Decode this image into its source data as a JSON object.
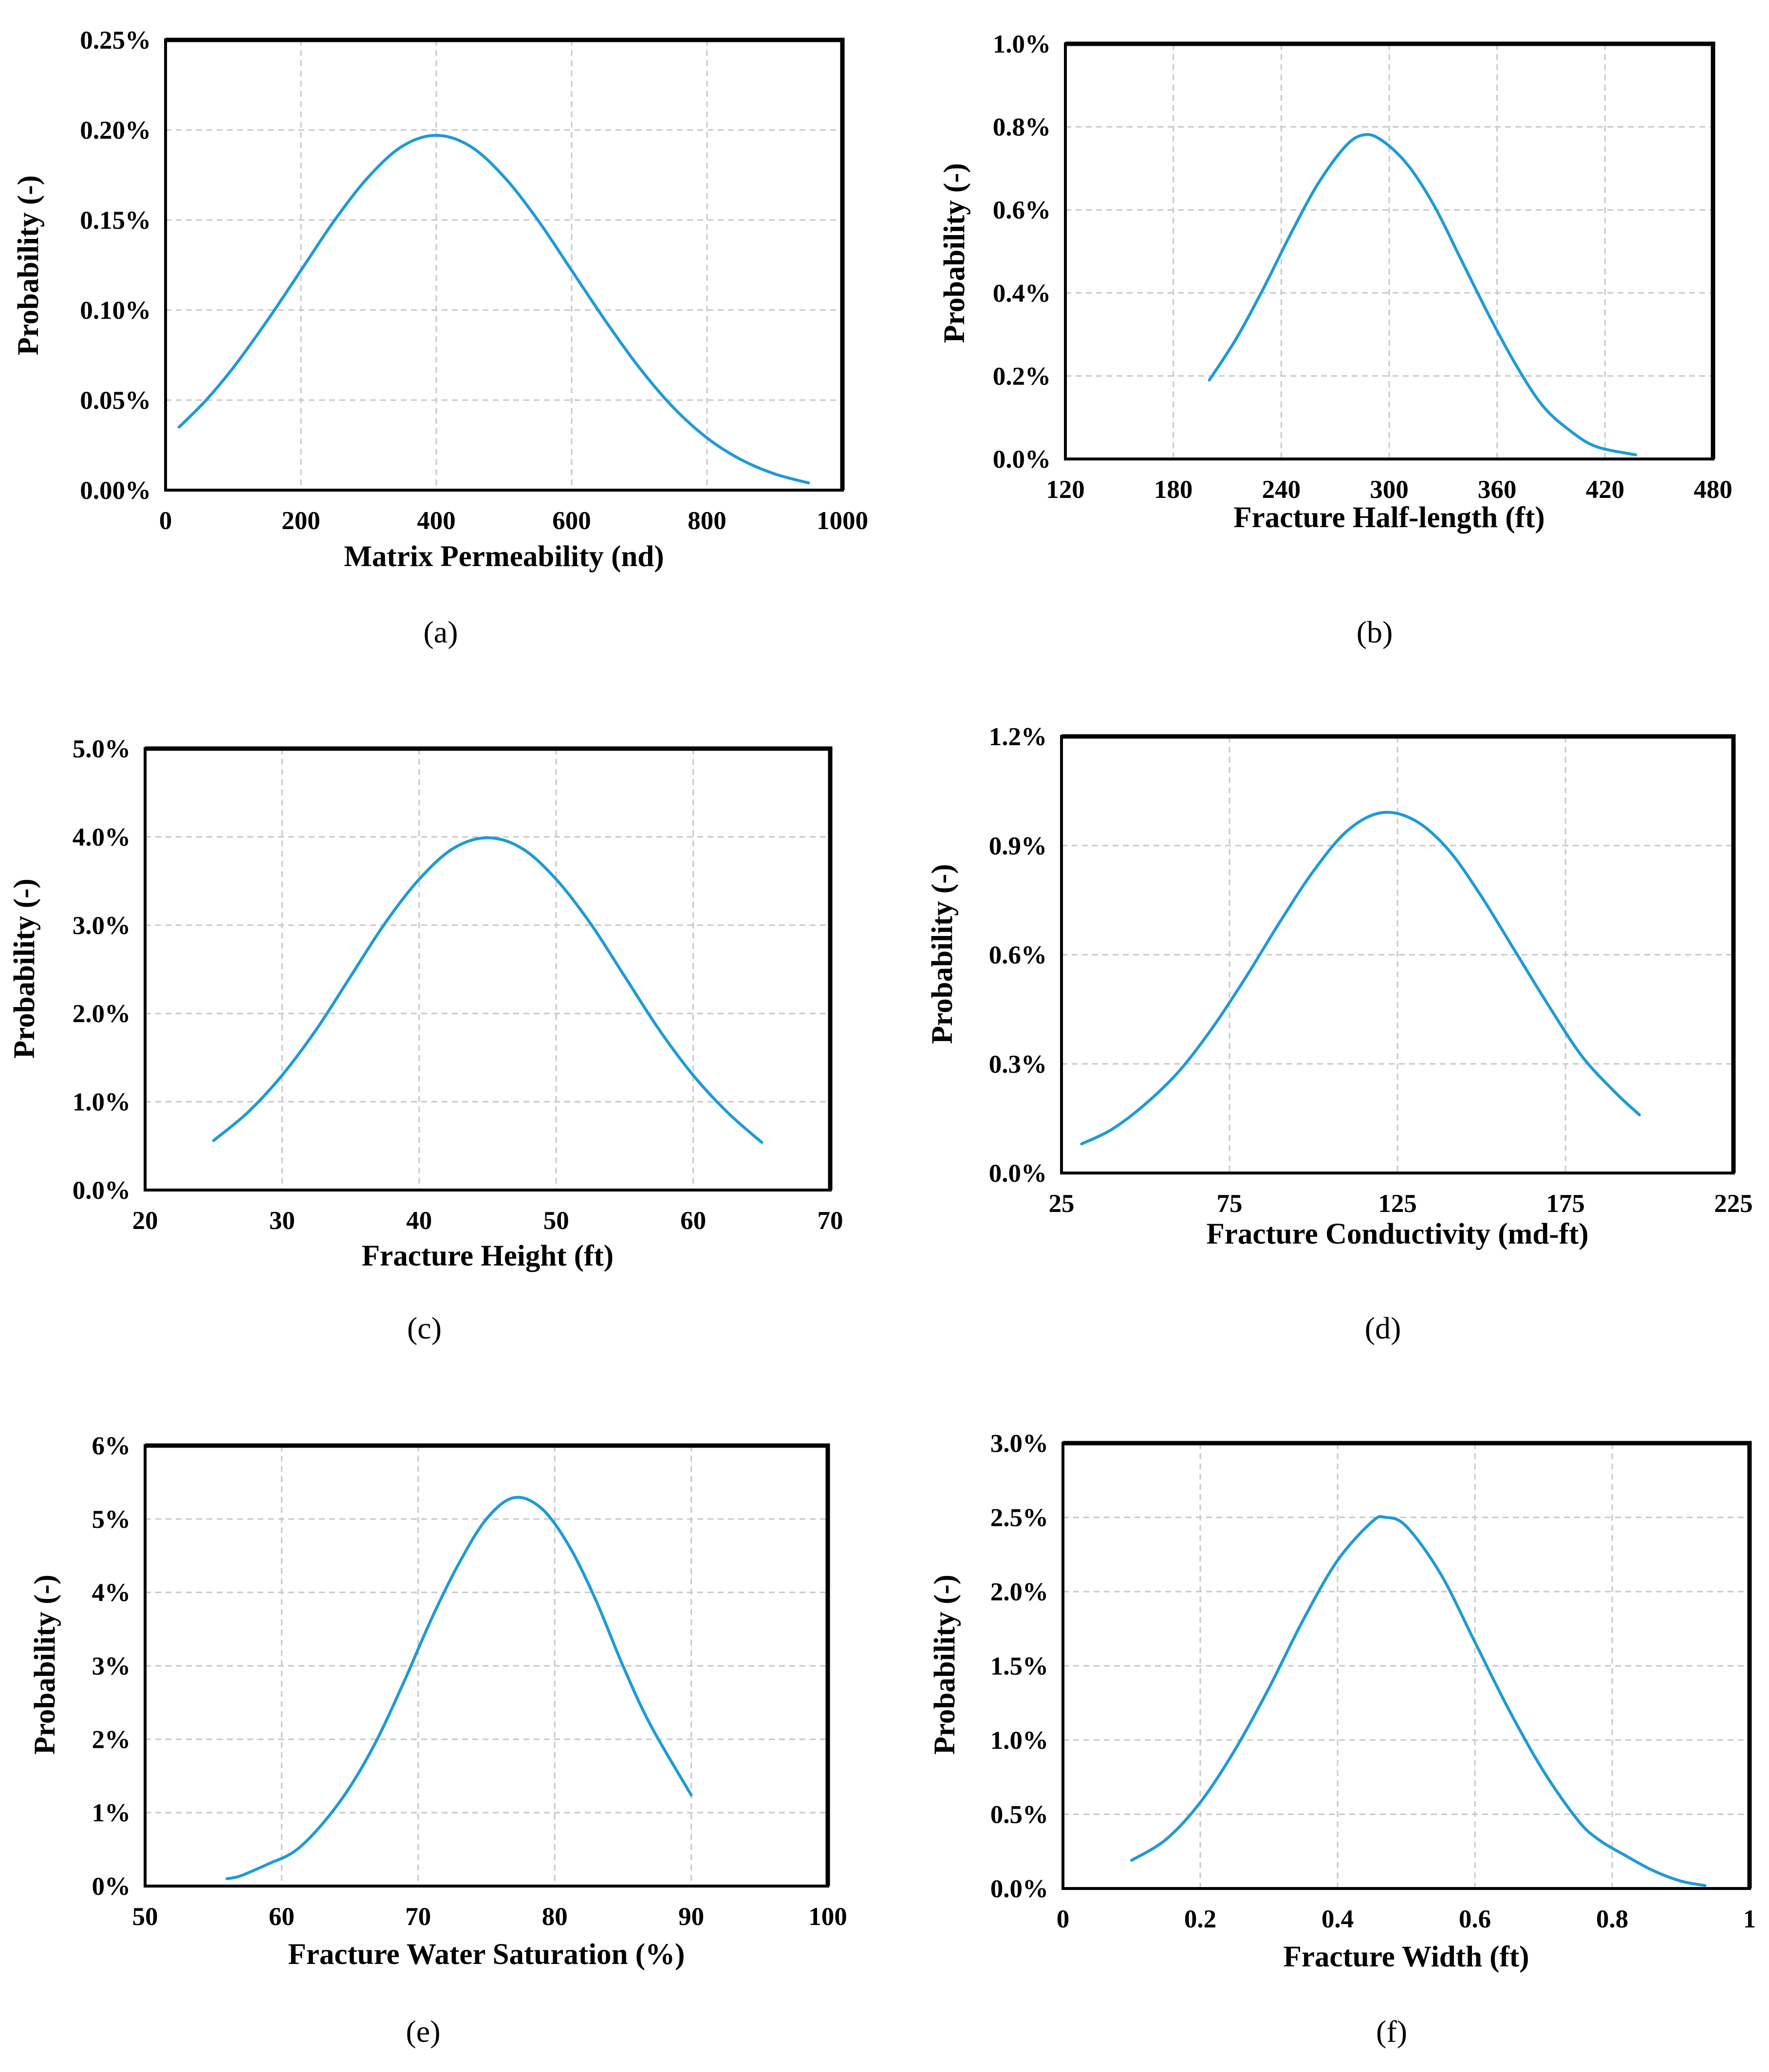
{
  "colors": {
    "curve": "#1f9ad6",
    "grid": "#c8c8c8",
    "frame": "#000000"
  },
  "chart_data": [
    {
      "type": "line",
      "caption": "(a)",
      "xlabel": "Matrix Permeability (nd)",
      "ylabel": "Probability (-)",
      "xlim": [
        0,
        1000
      ],
      "ylim": [
        0,
        0.0025
      ],
      "xticks": [
        0,
        200,
        400,
        600,
        800,
        1000
      ],
      "xtick_labels": [
        "0",
        "200",
        "400",
        "600",
        "800",
        "1000"
      ],
      "yticks": [
        0,
        0.0005,
        0.001,
        0.0015,
        0.002,
        0.0025
      ],
      "ytick_labels": [
        "0.00%",
        "0.05%",
        "0.10%",
        "0.15%",
        "0.20%",
        "0.25%"
      ],
      "grid": true,
      "series": [
        {
          "x": [
            20,
            60,
            100,
            150,
            200,
            250,
            300,
            350,
            400,
            450,
            500,
            550,
            600,
            650,
            700,
            750,
            800,
            850,
            900,
            950
          ],
          "y": [
            0.00035,
            0.0005,
            0.00068,
            0.00094,
            0.00122,
            0.0015,
            0.00174,
            0.00191,
            0.00197,
            0.00191,
            0.00174,
            0.0015,
            0.00122,
            0.00094,
            0.00068,
            0.00046,
            0.00029,
            0.00017,
            9e-05,
            4e-05
          ]
        }
      ]
    },
    {
      "type": "line",
      "caption": "(b)",
      "xlabel": "Fracture Half-length (ft)",
      "ylabel": "Probability (-)",
      "xlim": [
        120,
        480
      ],
      "ylim": [
        0,
        0.01
      ],
      "xticks": [
        120,
        180,
        240,
        300,
        360,
        420,
        480
      ],
      "xtick_labels": [
        "120",
        "180",
        "240",
        "300",
        "360",
        "420",
        "480"
      ],
      "yticks": [
        0,
        0.002,
        0.004,
        0.006,
        0.008,
        0.01
      ],
      "ytick_labels": [
        "0.0%",
        "0.2%",
        "0.4%",
        "0.6%",
        "0.8%",
        "1.0%"
      ],
      "grid": true,
      "series": [
        {
          "x": [
            200,
            215,
            230,
            245,
            260,
            275,
            285,
            295,
            310,
            325,
            340,
            355,
            370,
            385,
            400,
            415,
            437
          ],
          "y": [
            0.0019,
            0.0029,
            0.0041,
            0.0054,
            0.0066,
            0.0075,
            0.0078,
            0.0077,
            0.0071,
            0.0061,
            0.0048,
            0.0035,
            0.0023,
            0.0013,
            0.0007,
            0.0003,
            0.0001
          ]
        }
      ]
    },
    {
      "type": "line",
      "caption": "(c)",
      "xlabel": "Fracture Height (ft)",
      "ylabel": "Probability (-)",
      "xlim": [
        20,
        70
      ],
      "ylim": [
        0,
        0.05
      ],
      "xticks": [
        20,
        30,
        40,
        50,
        60,
        70
      ],
      "xtick_labels": [
        "20",
        "30",
        "40",
        "50",
        "60",
        "70"
      ],
      "yticks": [
        0,
        0.01,
        0.02,
        0.03,
        0.04,
        0.05
      ],
      "ytick_labels": [
        "0.0%",
        "1.0%",
        "2.0%",
        "3.0%",
        "4.0%",
        "5.0%"
      ],
      "grid": true,
      "series": [
        {
          "x": [
            25,
            27.5,
            30,
            32.5,
            35,
            37.5,
            40,
            42.5,
            45,
            47.5,
            50,
            52.5,
            55,
            57.5,
            60,
            62.5,
            65
          ],
          "y": [
            0.0056,
            0.0088,
            0.013,
            0.0182,
            0.0242,
            0.0302,
            0.0352,
            0.0387,
            0.0399,
            0.0387,
            0.0352,
            0.0302,
            0.0242,
            0.0182,
            0.013,
            0.0088,
            0.0054
          ]
        }
      ]
    },
    {
      "type": "line",
      "caption": "(d)",
      "xlabel": "Fracture Conductivity (md-ft)",
      "ylabel": "Probability (-)",
      "xlim": [
        25,
        225
      ],
      "ylim": [
        0,
        0.012
      ],
      "xticks": [
        25,
        75,
        125,
        175,
        225
      ],
      "xtick_labels": [
        "25",
        "75",
        "125",
        "175",
        "225"
      ],
      "yticks": [
        0,
        0.003,
        0.006,
        0.009,
        0.012
      ],
      "ytick_labels": [
        "0.0%",
        "0.3%",
        "0.6%",
        "0.9%",
        "1.2%"
      ],
      "grid": true,
      "series": [
        {
          "x": [
            31,
            40,
            50,
            60,
            70,
            80,
            90,
            100,
            110,
            120,
            130,
            140,
            150,
            160,
            170,
            180,
            190,
            197
          ],
          "y": [
            0.0008,
            0.0012,
            0.0019,
            0.0028,
            0.004,
            0.0054,
            0.0069,
            0.0083,
            0.0094,
            0.0099,
            0.0097,
            0.0089,
            0.0076,
            0.0061,
            0.0046,
            0.0032,
            0.0022,
            0.0016
          ]
        }
      ]
    },
    {
      "type": "line",
      "caption": "(e)",
      "xlabel": "Fracture Water Saturation (%)",
      "ylabel": "Probability (-)",
      "xlim": [
        50,
        100
      ],
      "ylim": [
        0,
        0.06
      ],
      "xticks": [
        50,
        60,
        70,
        80,
        90,
        100
      ],
      "xtick_labels": [
        "50",
        "60",
        "70",
        "80",
        "90",
        "100"
      ],
      "yticks": [
        0,
        0.01,
        0.02,
        0.03,
        0.04,
        0.05,
        0.06
      ],
      "ytick_labels": [
        "0%",
        "1%",
        "2%",
        "3%",
        "4%",
        "5%",
        "6%"
      ],
      "grid": true,
      "series": [
        {
          "x": [
            56,
            57,
            59,
            61,
            63,
            65,
            67,
            69,
            71,
            73,
            75,
            77,
            79,
            81,
            83,
            85,
            87,
            90
          ],
          "y": [
            0.001,
            0.0014,
            0.003,
            0.0048,
            0.0085,
            0.0135,
            0.02,
            0.028,
            0.0365,
            0.044,
            0.05,
            0.0529,
            0.0515,
            0.0465,
            0.039,
            0.03,
            0.022,
            0.0124
          ]
        }
      ]
    },
    {
      "type": "line",
      "caption": "(f)",
      "xlabel": "Fracture Width (ft)",
      "ylabel": "Probability (-)",
      "xlim": [
        0,
        1
      ],
      "ylim": [
        0,
        0.03
      ],
      "xticks": [
        0,
        0.2,
        0.4,
        0.6,
        0.8,
        1
      ],
      "xtick_labels": [
        "0",
        "0.2",
        "0.4",
        "0.6",
        "0.8",
        "1"
      ],
      "yticks": [
        0,
        0.005,
        0.01,
        0.015,
        0.02,
        0.025,
        0.03
      ],
      "ytick_labels": [
        "0.0%",
        "0.5%",
        "1.0%",
        "1.5%",
        "2.0%",
        "2.5%",
        "3.0%"
      ],
      "grid": true,
      "series": [
        {
          "x": [
            0.1,
            0.15,
            0.2,
            0.25,
            0.3,
            0.35,
            0.4,
            0.45,
            0.47,
            0.5,
            0.55,
            0.6,
            0.65,
            0.7,
            0.75,
            0.78,
            0.82,
            0.86,
            0.9,
            0.935
          ],
          "y": [
            0.0019,
            0.0033,
            0.0058,
            0.0093,
            0.0135,
            0.0181,
            0.0221,
            0.0247,
            0.025,
            0.0244,
            0.0212,
            0.0166,
            0.012,
            0.0079,
            0.0046,
            0.0033,
            0.0022,
            0.0012,
            0.0005,
            0.0002
          ]
        }
      ]
    }
  ]
}
